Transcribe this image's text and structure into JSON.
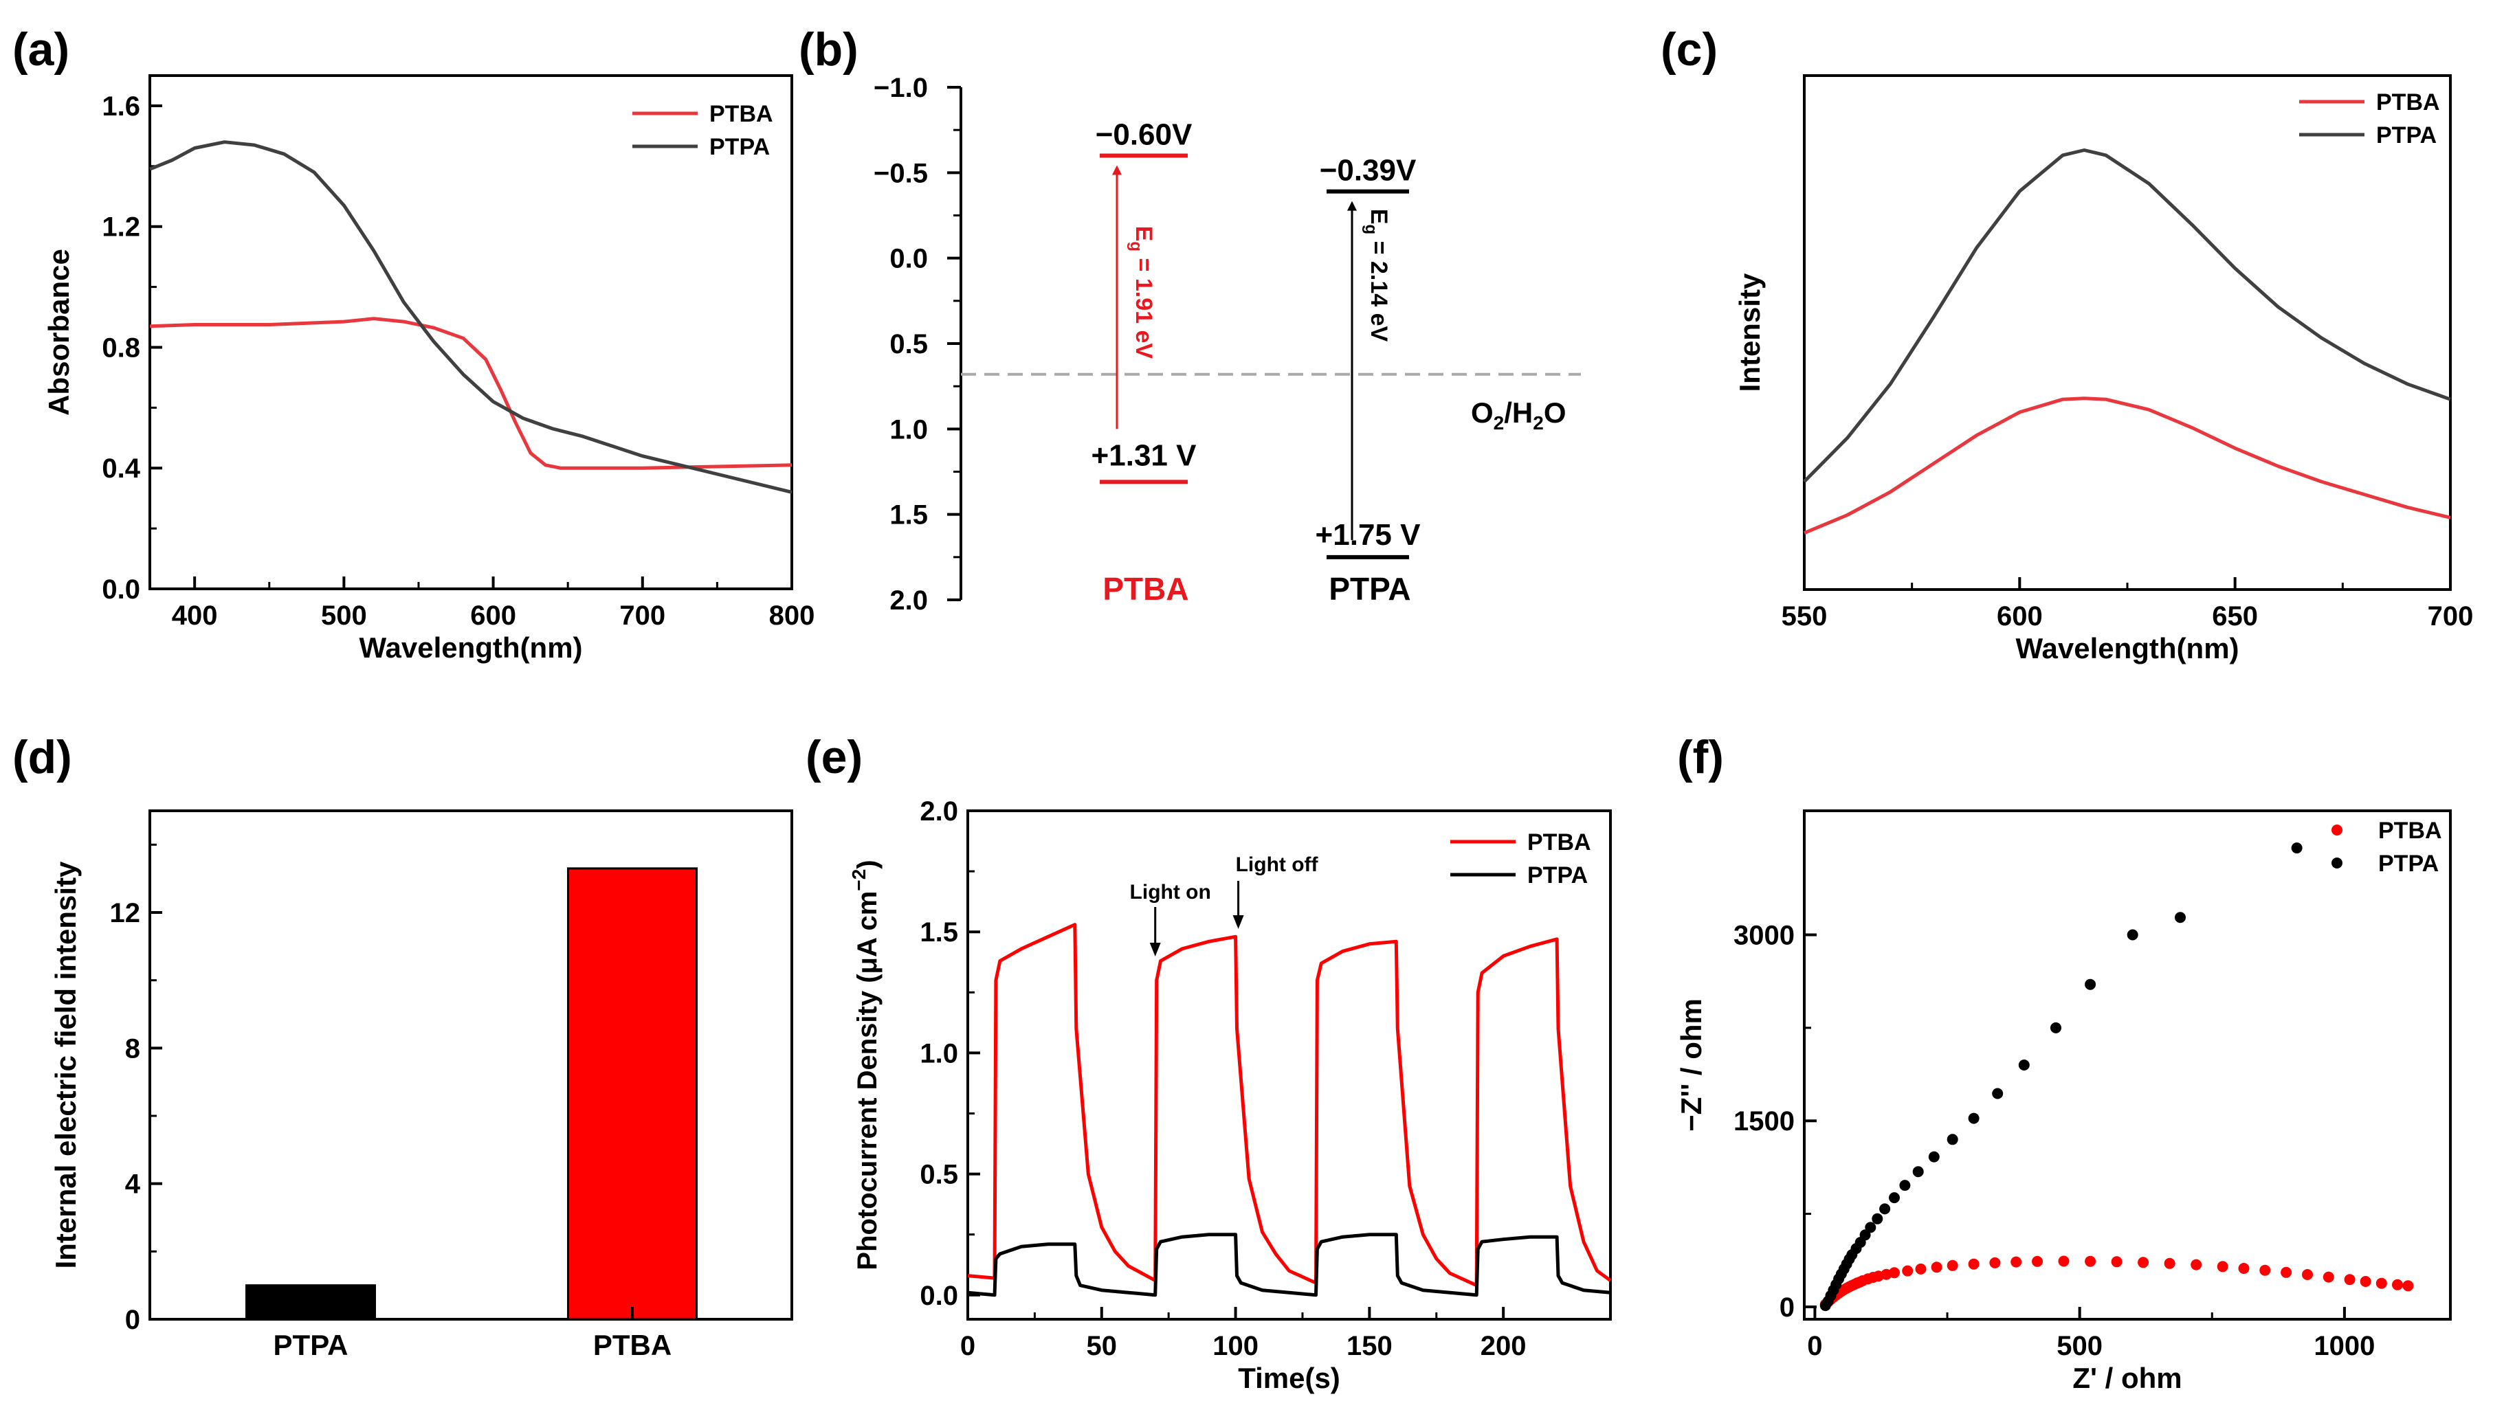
{
  "chart_data": [
    {
      "panel": "(a)",
      "type": "line",
      "xlabel": "Wavelength(nm)",
      "ylabel": "Absorbance",
      "xlim": [
        370,
        800
      ],
      "ylim": [
        0.0,
        1.7
      ],
      "xticks": [
        400,
        500,
        600,
        700,
        800
      ],
      "yticks": [
        0.0,
        0.4,
        0.8,
        1.2,
        1.6
      ],
      "xtick_labels": [
        "400",
        "500",
        "600",
        "700",
        "800"
      ],
      "ytick_labels": [
        "0.0",
        "0.4",
        "0.8",
        "1.2",
        "1.6"
      ],
      "legend": "top-right",
      "series": [
        {
          "name": "PTBA",
          "color": "#e8383d",
          "x": [
            370,
            400,
            450,
            500,
            520,
            540,
            560,
            580,
            595,
            605,
            615,
            625,
            635,
            645,
            660,
            700,
            750,
            800
          ],
          "y": [
            0.87,
            0.875,
            0.875,
            0.885,
            0.895,
            0.885,
            0.865,
            0.83,
            0.76,
            0.66,
            0.55,
            0.45,
            0.41,
            0.4,
            0.4,
            0.4,
            0.405,
            0.41
          ]
        },
        {
          "name": "PTPA",
          "color": "#404040",
          "x": [
            370,
            385,
            400,
            420,
            440,
            460,
            480,
            500,
            520,
            540,
            560,
            580,
            600,
            620,
            640,
            660,
            700,
            750,
            800
          ],
          "y": [
            1.39,
            1.42,
            1.46,
            1.48,
            1.47,
            1.44,
            1.38,
            1.27,
            1.12,
            0.95,
            0.82,
            0.71,
            0.62,
            0.565,
            0.53,
            0.505,
            0.44,
            0.38,
            0.32
          ]
        }
      ]
    },
    {
      "panel": "(b)",
      "type": "diagram",
      "ylim": [
        -1.0,
        2.0
      ],
      "yticks": [
        -1.0,
        -0.5,
        0.0,
        0.5,
        1.0,
        1.5,
        2.0
      ],
      "ytick_labels": [
        "−1.0",
        "−0.5",
        "0.0",
        "0.5",
        "1.0",
        "1.5",
        "2.0"
      ],
      "reference_level": {
        "label_main": "O",
        "sub1": "2",
        "slash": "/H",
        "sub2": "2",
        "label_end": "O",
        "value": 0.68
      },
      "bands": [
        {
          "name": "PTBA",
          "color": "#e8181e",
          "cb": -0.6,
          "vb": 1.31,
          "cb_label": "−0.60V",
          "vb_label": "+1.31 V",
          "eg_label_main": "E",
          "eg_sub": "g",
          "eg_label_rest": " = 1.91 eV",
          "eg": 1.91
        },
        {
          "name": "PTPA",
          "color": "#000000",
          "cb": -0.39,
          "vb": 1.75,
          "cb_label": "−0.39V",
          "vb_label": "+1.75 V",
          "eg_label_main": "E",
          "eg_sub": "g",
          "eg_label_rest": " = 2.14 eV",
          "eg": 2.14
        }
      ]
    },
    {
      "panel": "(c)",
      "type": "line",
      "xlabel": "Wavelength(nm)",
      "ylabel": "Intensity",
      "xlim": [
        550,
        700
      ],
      "ylim": [
        0,
        1
      ],
      "xticks": [
        550,
        600,
        650,
        700
      ],
      "xtick_labels": [
        "550",
        "600",
        "650",
        "700"
      ],
      "legend": "top-right",
      "series": [
        {
          "name": "PTBA",
          "color": "#e8383d",
          "x": [
            550,
            560,
            570,
            580,
            590,
            600,
            610,
            615,
            620,
            630,
            640,
            650,
            660,
            670,
            680,
            690,
            700
          ],
          "y": [
            0.11,
            0.145,
            0.19,
            0.245,
            0.3,
            0.345,
            0.37,
            0.372,
            0.37,
            0.35,
            0.315,
            0.275,
            0.24,
            0.21,
            0.185,
            0.16,
            0.14
          ]
        },
        {
          "name": "PTPA",
          "color": "#404040",
          "x": [
            550,
            560,
            570,
            580,
            590,
            600,
            610,
            615,
            620,
            630,
            640,
            650,
            660,
            670,
            680,
            690,
            700
          ],
          "y": [
            0.21,
            0.295,
            0.4,
            0.53,
            0.665,
            0.775,
            0.845,
            0.855,
            0.845,
            0.79,
            0.71,
            0.625,
            0.55,
            0.49,
            0.44,
            0.4,
            0.37
          ]
        }
      ]
    },
    {
      "panel": "(d)",
      "type": "bar",
      "ylabel": "Internal electric field intensity",
      "categories": [
        "PTPA",
        "PTBA"
      ],
      "values": [
        1.0,
        13.3
      ],
      "colors": [
        "#000000",
        "#ff0000"
      ],
      "ylim": [
        0,
        15
      ],
      "yticks": [
        0,
        4,
        8,
        12
      ],
      "ytick_labels": [
        "0",
        "4",
        "8",
        "12"
      ]
    },
    {
      "panel": "(e)",
      "type": "line",
      "xlabel": "Time(s)",
      "ylabel_main": "Photocurrent Density (μA cm",
      "ylabel_sup": "−2",
      "ylabel_end": ")",
      "xlim": [
        0,
        240
      ],
      "ylim": [
        -0.1,
        2.0
      ],
      "xticks": [
        0,
        50,
        100,
        150,
        200
      ],
      "yticks": [
        0.0,
        0.5,
        1.0,
        1.5,
        2.0
      ],
      "xtick_labels": [
        "0",
        "50",
        "100",
        "150",
        "200"
      ],
      "ytick_labels": [
        "0.0",
        "0.5",
        "1.0",
        "1.5",
        "2.0"
      ],
      "legend": "top-right",
      "annotations": [
        "Light on",
        "Light off"
      ],
      "light_on": [
        10,
        70,
        130,
        190
      ],
      "light_off": [
        40,
        100,
        160,
        220
      ],
      "series": [
        {
          "name": "PTBA",
          "color": "#ff0000",
          "x": [
            0,
            10,
            10.5,
            12,
            20,
            30,
            40,
            40.5,
            45,
            50,
            55,
            60,
            70,
            70.5,
            72,
            80,
            90,
            100,
            100.5,
            105,
            110,
            115,
            120,
            130,
            130.5,
            132,
            140,
            150,
            160,
            160.5,
            165,
            170,
            175,
            180,
            190,
            190.5,
            192,
            200,
            210,
            220,
            220.5,
            225,
            230,
            235,
            240
          ],
          "y": [
            0.08,
            0.07,
            1.3,
            1.38,
            1.43,
            1.48,
            1.53,
            1.1,
            0.5,
            0.28,
            0.18,
            0.12,
            0.06,
            1.3,
            1.38,
            1.43,
            1.46,
            1.48,
            1.1,
            0.48,
            0.26,
            0.17,
            0.1,
            0.05,
            1.3,
            1.37,
            1.42,
            1.45,
            1.46,
            1.1,
            0.45,
            0.25,
            0.15,
            0.09,
            0.04,
            1.25,
            1.33,
            1.4,
            1.44,
            1.47,
            1.1,
            0.45,
            0.22,
            0.1,
            0.06
          ]
        },
        {
          "name": "PTPA",
          "color": "#000000",
          "x": [
            0,
            10,
            10.5,
            12,
            20,
            30,
            40,
            40.5,
            42,
            50,
            60,
            70,
            70.5,
            72,
            80,
            90,
            100,
            100.5,
            102,
            110,
            120,
            130,
            130.5,
            132,
            140,
            150,
            160,
            160.5,
            162,
            170,
            180,
            190,
            190.5,
            192,
            200,
            210,
            220,
            220.5,
            222,
            230,
            240
          ],
          "y": [
            0.01,
            0.0,
            0.15,
            0.17,
            0.2,
            0.21,
            0.21,
            0.08,
            0.04,
            0.02,
            0.01,
            0.0,
            0.19,
            0.22,
            0.24,
            0.25,
            0.25,
            0.08,
            0.05,
            0.02,
            0.01,
            0.0,
            0.19,
            0.22,
            0.24,
            0.25,
            0.25,
            0.08,
            0.05,
            0.02,
            0.01,
            0.0,
            0.19,
            0.22,
            0.23,
            0.24,
            0.24,
            0.08,
            0.05,
            0.02,
            0.01
          ]
        }
      ]
    },
    {
      "panel": "(f)",
      "type": "scatter",
      "xlabel": "Z' / ohm",
      "ylabel": "−Z'' / ohm",
      "xlim": [
        -20,
        1200
      ],
      "ylim": [
        -100,
        4000
      ],
      "xticks": [
        0,
        500,
        1000
      ],
      "yticks": [
        0,
        1500,
        3000
      ],
      "xtick_labels": [
        "0",
        "500",
        "1000"
      ],
      "ytick_labels": [
        "0",
        "1500",
        "3000"
      ],
      "legend": "top-right",
      "series": [
        {
          "name": "PTBA",
          "color": "#ff0000",
          "x": [
            20,
            25,
            30,
            35,
            40,
            45,
            50,
            55,
            60,
            65,
            70,
            75,
            80,
            85,
            90,
            100,
            110,
            120,
            135,
            150,
            175,
            200,
            230,
            260,
            300,
            340,
            380,
            420,
            470,
            520,
            570,
            620,
            670,
            720,
            770,
            810,
            850,
            890,
            930,
            970,
            1010,
            1040,
            1070,
            1100,
            1120
          ],
          "y": [
            20,
            40,
            60,
            78,
            95,
            110,
            125,
            138,
            150,
            162,
            172,
            182,
            192,
            200,
            210,
            225,
            238,
            248,
            262,
            275,
            290,
            305,
            320,
            333,
            345,
            355,
            362,
            366,
            368,
            367,
            364,
            358,
            350,
            340,
            325,
            310,
            295,
            278,
            260,
            240,
            220,
            205,
            190,
            178,
            170
          ]
        },
        {
          "name": "PTPA",
          "color": "#000000",
          "x": [
            20,
            25,
            30,
            35,
            40,
            45,
            50,
            55,
            60,
            65,
            70,
            78,
            86,
            95,
            105,
            118,
            132,
            150,
            170,
            195,
            225,
            260,
            300,
            345,
            395,
            455,
            520,
            600,
            690,
            910
          ],
          "y": [
            10,
            45,
            90,
            135,
            180,
            225,
            265,
            305,
            345,
            385,
            420,
            470,
            520,
            580,
            640,
            710,
            790,
            880,
            980,
            1090,
            1210,
            1350,
            1520,
            1720,
            1950,
            2250,
            2600,
            3000,
            3140,
            3700
          ]
        }
      ]
    }
  ]
}
